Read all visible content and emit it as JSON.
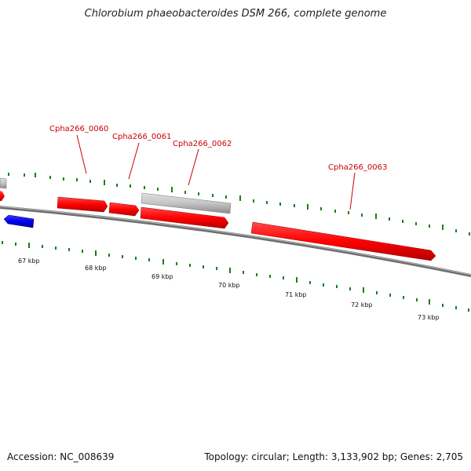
{
  "title": "Chlorobium phaeobacteroides DSM 266, complete genome",
  "colors": {
    "gene_forward": "#ff0000",
    "gene_reverse": "#0000cc",
    "gene_other": "#c0c0c0",
    "backbone": "#808080",
    "ticks": "#1a7f1a",
    "label": "#cc0000"
  },
  "gene_labels": [
    "Cpha266_0060",
    "Cpha266_0061",
    "Cpha266_0062",
    "Cpha266_0063"
  ],
  "scale_labels": [
    "67 kbp",
    "68 kbp",
    "69 kbp",
    "70 kbp",
    "71 kbp",
    "72 kbp",
    "73 kbp"
  ],
  "footer": {
    "accession": "Accession: NC_008639",
    "stats": "Topology: circular; Length: 3,133,902 bp; Genes: 2,705"
  }
}
